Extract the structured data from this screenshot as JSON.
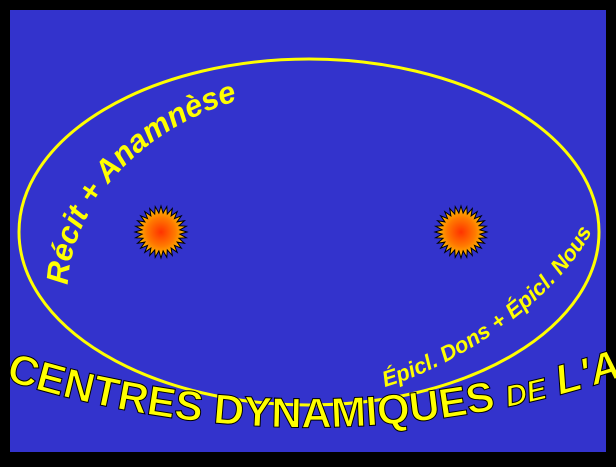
{
  "slide": {
    "background_color": "#3333CC",
    "frame_color": "#000000",
    "accent_color": "#FFFF00",
    "arc_top_text": "Récit + Anamnèse",
    "arc_right_text": "Épicl. Dons + Épicl. Nous",
    "bottom_parts": [
      "LES DEUX CENTRES DYNAMIQUES ",
      "DE",
      " L'ANAPHORE"
    ],
    "foci": [
      {
        "name": "left-sun-icon",
        "fill_outer": "#FFCC00",
        "fill_inner": "#FF3300"
      },
      {
        "name": "right-sun-icon",
        "fill_outer": "#FFCC00",
        "fill_inner": "#FF3300"
      }
    ]
  }
}
